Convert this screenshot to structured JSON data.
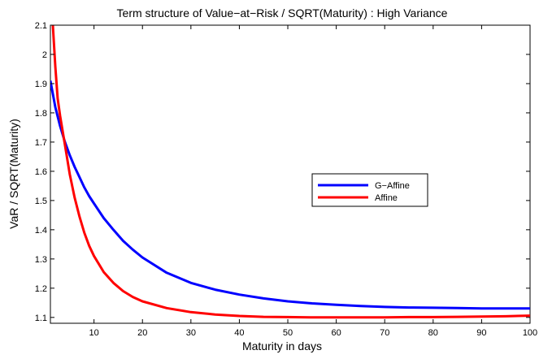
{
  "chart_data": {
    "type": "line",
    "title": "Term structure of Value−at−Risk / SQRT(Maturity) : High Variance",
    "xlabel": "Maturity in days",
    "ylabel": "VaR / SQRT(Maturity)",
    "xlim": [
      1,
      100
    ],
    "ylim": [
      1.08,
      2.1
    ],
    "xticks": [
      10,
      20,
      30,
      40,
      50,
      60,
      70,
      80,
      90,
      100
    ],
    "yticks": [
      1.1,
      1.2,
      1.3,
      1.4,
      1.5,
      1.6,
      1.7,
      1.8,
      1.9,
      2,
      2.1
    ],
    "ytick_labels": [
      "1.1",
      "1.2",
      "1.3",
      "1.4",
      "1.5",
      "1.6",
      "1.7",
      "1.8",
      "1.9",
      "2",
      "2.1"
    ],
    "grid": false,
    "legend_position": "center-right",
    "series": [
      {
        "name": "G−Affine",
        "color": "#0000ff",
        "x": [
          1,
          2,
          3,
          4,
          5,
          6,
          7,
          8,
          9,
          10,
          12,
          14,
          16,
          18,
          20,
          25,
          30,
          35,
          40,
          45,
          50,
          55,
          60,
          65,
          70,
          75,
          80,
          85,
          90,
          95,
          100
        ],
        "y": [
          1.91,
          1.82,
          1.755,
          1.7,
          1.655,
          1.615,
          1.58,
          1.545,
          1.515,
          1.49,
          1.44,
          1.4,
          1.362,
          1.332,
          1.305,
          1.253,
          1.218,
          1.195,
          1.178,
          1.165,
          1.155,
          1.148,
          1.143,
          1.139,
          1.136,
          1.134,
          1.133,
          1.132,
          1.131,
          1.131,
          1.131
        ]
      },
      {
        "name": "Affine",
        "color": "#ff0000",
        "x": [
          1.5,
          2,
          2.5,
          3,
          3.5,
          4,
          5,
          6,
          7,
          8,
          9,
          10,
          12,
          14,
          16,
          18,
          20,
          25,
          30,
          35,
          40,
          45,
          50,
          55,
          60,
          65,
          70,
          75,
          80,
          85,
          90,
          95,
          100
        ],
        "y": [
          2.1,
          1.96,
          1.85,
          1.79,
          1.74,
          1.69,
          1.59,
          1.51,
          1.445,
          1.39,
          1.345,
          1.31,
          1.255,
          1.218,
          1.19,
          1.17,
          1.155,
          1.132,
          1.118,
          1.11,
          1.105,
          1.102,
          1.101,
          1.1,
          1.1,
          1.1,
          1.1,
          1.101,
          1.101,
          1.102,
          1.103,
          1.104,
          1.106
        ]
      }
    ]
  }
}
